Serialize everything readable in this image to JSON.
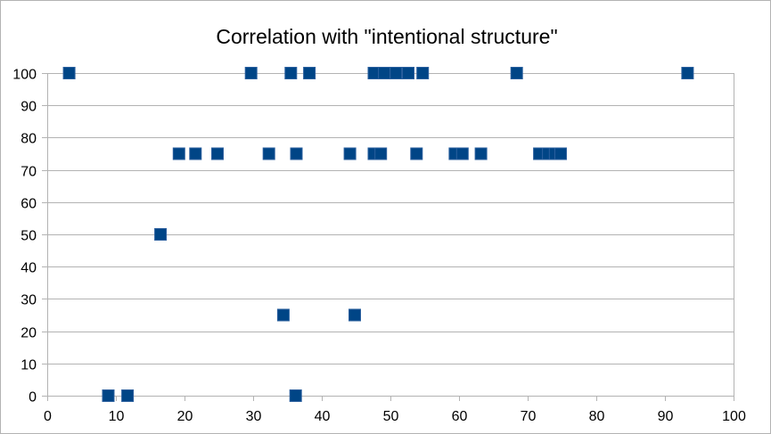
{
  "chart_data": {
    "type": "scatter",
    "title": "Correlation with \"intentional structure\"",
    "xlabel": "",
    "ylabel": "",
    "xlim": [
      0,
      100
    ],
    "ylim": [
      0,
      100
    ],
    "x_ticks": [
      0,
      10,
      20,
      30,
      40,
      50,
      60,
      70,
      80,
      90,
      100
    ],
    "y_ticks": [
      0,
      10,
      20,
      30,
      40,
      50,
      60,
      70,
      80,
      90,
      100
    ],
    "grid": "horizontal",
    "legend": "none",
    "marker": "square",
    "marker_color": "#004586",
    "points": [
      {
        "x": 3.2,
        "y": 100
      },
      {
        "x": 29.7,
        "y": 100
      },
      {
        "x": 35.5,
        "y": 100
      },
      {
        "x": 38.2,
        "y": 100
      },
      {
        "x": 47.6,
        "y": 100
      },
      {
        "x": 49.1,
        "y": 100
      },
      {
        "x": 50.8,
        "y": 100
      },
      {
        "x": 52.6,
        "y": 100
      },
      {
        "x": 54.7,
        "y": 100
      },
      {
        "x": 68.4,
        "y": 100
      },
      {
        "x": 93.3,
        "y": 100
      },
      {
        "x": 19.2,
        "y": 75
      },
      {
        "x": 21.6,
        "y": 75
      },
      {
        "x": 24.8,
        "y": 75
      },
      {
        "x": 32.3,
        "y": 75
      },
      {
        "x": 36.3,
        "y": 75
      },
      {
        "x": 44.1,
        "y": 75
      },
      {
        "x": 47.6,
        "y": 75
      },
      {
        "x": 48.6,
        "y": 75
      },
      {
        "x": 53.8,
        "y": 75
      },
      {
        "x": 59.4,
        "y": 75
      },
      {
        "x": 60.5,
        "y": 75
      },
      {
        "x": 63.2,
        "y": 75
      },
      {
        "x": 71.7,
        "y": 75
      },
      {
        "x": 73.0,
        "y": 75
      },
      {
        "x": 74.0,
        "y": 75
      },
      {
        "x": 74.8,
        "y": 75
      },
      {
        "x": 16.5,
        "y": 50
      },
      {
        "x": 34.4,
        "y": 25
      },
      {
        "x": 44.8,
        "y": 25
      },
      {
        "x": 8.9,
        "y": 0
      },
      {
        "x": 11.7,
        "y": 0
      },
      {
        "x": 36.2,
        "y": 0
      }
    ]
  }
}
